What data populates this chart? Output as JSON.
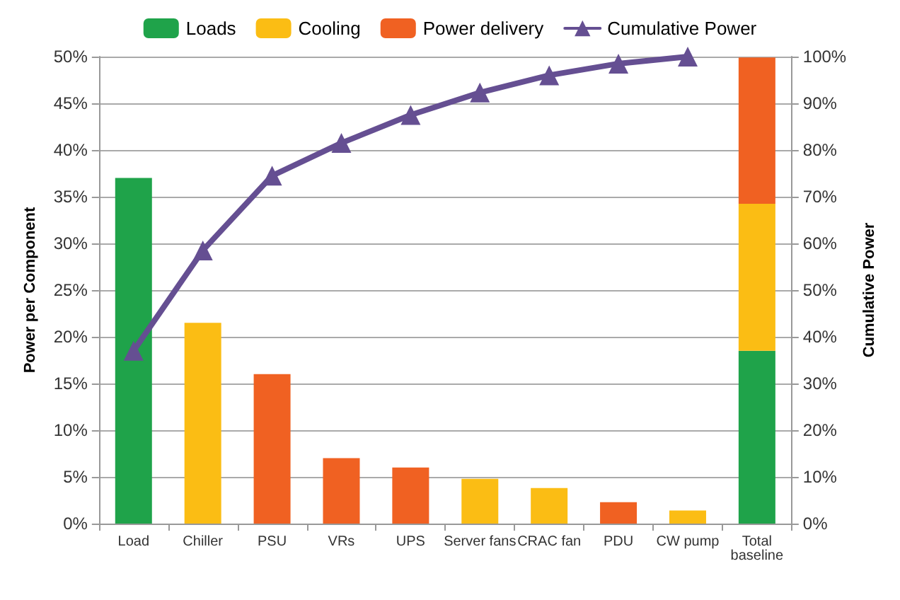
{
  "chart_data": {
    "type": "bar",
    "ylabel": "Power per Component",
    "y2label": "Cumulative Power",
    "categories": [
      "Load",
      "Chiller",
      "PSU",
      "VRs",
      "UPS",
      "Server fans",
      "CRAC fan",
      "PDU",
      "CW pump",
      "Total\nbaseline"
    ],
    "stacked": true,
    "legend": "top",
    "grid": "y",
    "marker": "triangle",
    "ylim": [
      0,
      50
    ],
    "yticks": [
      {
        "value": 0,
        "label": "0%"
      },
      {
        "value": 5,
        "label": "5%"
      },
      {
        "value": 10,
        "label": "10%"
      },
      {
        "value": 15,
        "label": "15%"
      },
      {
        "value": 20,
        "label": "20%"
      },
      {
        "value": 25,
        "label": "25%"
      },
      {
        "value": 30,
        "label": "30%"
      },
      {
        "value": 35,
        "label": "35%"
      },
      {
        "value": 40,
        "label": "40%"
      },
      {
        "value": 45,
        "label": "45%"
      },
      {
        "value": 50,
        "label": "50%"
      }
    ],
    "y2lim": [
      0,
      100
    ],
    "y2ticks": [
      {
        "value": 0,
        "label": "0%"
      },
      {
        "value": 10,
        "label": "10%"
      },
      {
        "value": 20,
        "label": "20%"
      },
      {
        "value": 30,
        "label": "30%"
      },
      {
        "value": 40,
        "label": "40%"
      },
      {
        "value": 50,
        "label": "50%"
      },
      {
        "value": 60,
        "label": "60%"
      },
      {
        "value": 70,
        "label": "70%"
      },
      {
        "value": 80,
        "label": "80%"
      },
      {
        "value": 90,
        "label": "90%"
      },
      {
        "value": 100,
        "label": "100%"
      }
    ],
    "series": [
      {
        "name": "Loads",
        "color": "#1fa34a",
        "values": [
          37,
          null,
          null,
          null,
          null,
          null,
          null,
          null,
          null,
          null
        ]
      },
      {
        "name": "Cooling",
        "color": "#fbbd14",
        "values": [
          null,
          21.5,
          null,
          null,
          null,
          4.8,
          3.8,
          null,
          1.4,
          null
        ]
      },
      {
        "name": "Power delivery",
        "color": "#f06122",
        "values": [
          null,
          null,
          16,
          7,
          6,
          null,
          null,
          2.3,
          null,
          null
        ]
      },
      {
        "color": "#1fa34a",
        "axis": "y2",
        "values": [
          null,
          null,
          null,
          null,
          null,
          null,
          null,
          null,
          null,
          37
        ]
      },
      {
        "color": "#fbbd14",
        "axis": "y2",
        "values": [
          null,
          null,
          null,
          null,
          null,
          null,
          null,
          null,
          null,
          31.5
        ]
      },
      {
        "color": "#f06122",
        "axis": "y2",
        "values": [
          null,
          null,
          null,
          null,
          null,
          null,
          null,
          null,
          null,
          31.3
        ]
      },
      {
        "name": "Cumulative Power",
        "type": "line",
        "color": "#654f92",
        "axis": "y2",
        "values": [
          37,
          58.5,
          74.5,
          81.5,
          87.5,
          92.3,
          96,
          98.5,
          100,
          null
        ]
      }
    ]
  }
}
